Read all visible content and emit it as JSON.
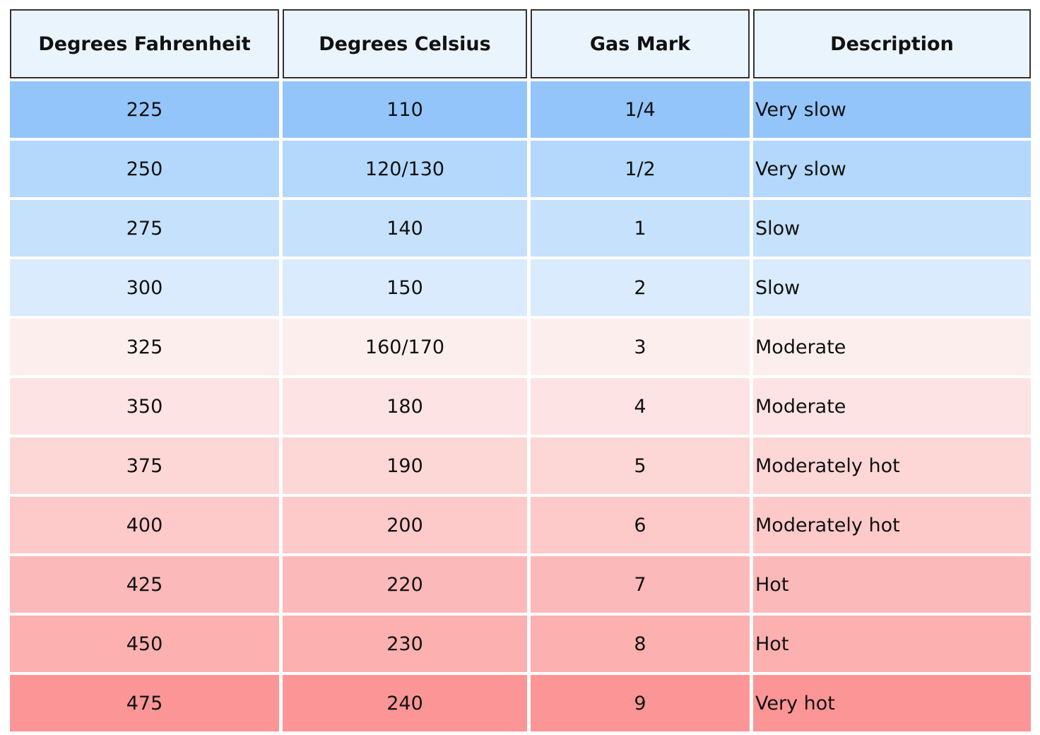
{
  "table": {
    "header": [
      "Degrees Fahrenheit",
      "Degrees Celsius",
      "Gas Mark",
      "Description"
    ],
    "rows": [
      [
        "225",
        "110",
        "1/4",
        "Very slow"
      ],
      [
        "250",
        "120/130",
        "1/2",
        "Very slow"
      ],
      [
        "275",
        "140",
        "1",
        "Slow"
      ],
      [
        "300",
        "150",
        "2",
        "Slow"
      ],
      [
        "325",
        "160/170",
        "3",
        "Moderate"
      ],
      [
        "350",
        "180",
        "4",
        "Moderate"
      ],
      [
        "375",
        "190",
        "5",
        "Moderately hot"
      ],
      [
        "400",
        "200",
        "6",
        "Moderately hot"
      ],
      [
        "425",
        "220",
        "7",
        "Hot"
      ],
      [
        "450",
        "230",
        "8",
        "Hot"
      ],
      [
        "475",
        "240",
        "9",
        "Very hot"
      ]
    ]
  }
}
